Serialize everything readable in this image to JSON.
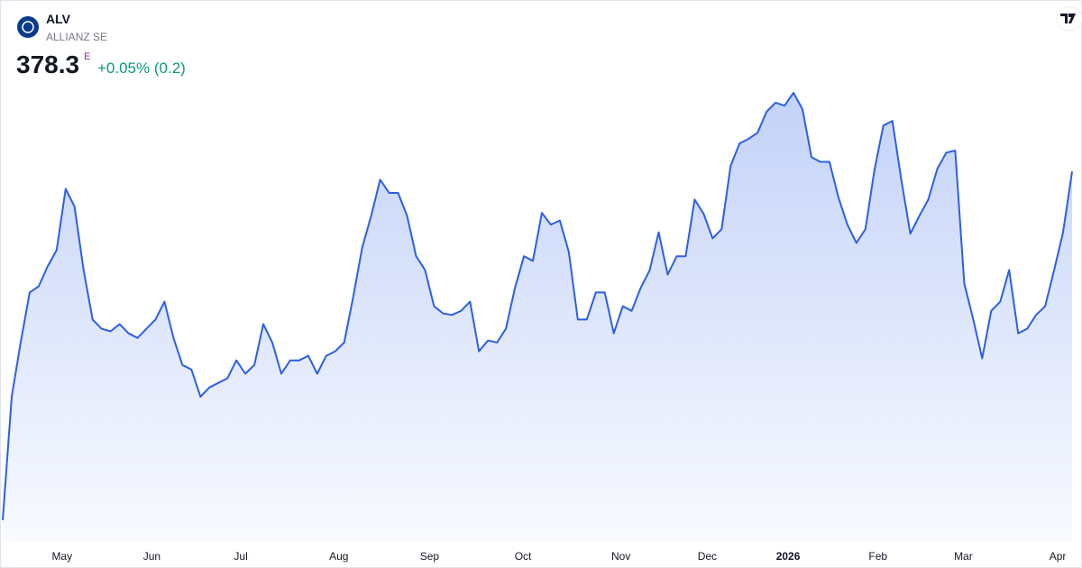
{
  "header": {
    "symbol": "ALV",
    "name": "ALLIANZ SE",
    "price": "378.3",
    "badge": "E",
    "change": "+0.05% (0.2)"
  },
  "chart_data": {
    "type": "area",
    "color": "#2c5fe8",
    "values": [
      310.0,
      334.2,
      344.8,
      354.6,
      355.8,
      359.7,
      362.9,
      374.9,
      371.4,
      359.0,
      349.3,
      347.5,
      347.0,
      348.4,
      346.6,
      345.7,
      347.5,
      349.3,
      352.8,
      345.7,
      340.4,
      339.5,
      334.2,
      336.0,
      336.9,
      337.8,
      341.3,
      338.7,
      340.4,
      348.4,
      344.8,
      338.7,
      341.3,
      341.3,
      342.2,
      338.7,
      342.2,
      343.1,
      344.8,
      353.7,
      363.4,
      369.6,
      376.7,
      374.1,
      374.1,
      369.6,
      361.7,
      359.0,
      351.9,
      350.5,
      350.2,
      351.0,
      352.8,
      343.1,
      345.2,
      344.8,
      347.5,
      355.5,
      361.7,
      360.8,
      370.2,
      367.9,
      368.7,
      362.5,
      349.3,
      349.3,
      354.6,
      354.6,
      346.6,
      351.9,
      351.0,
      355.5,
      359.0,
      366.4,
      358.1,
      361.7,
      361.7,
      372.8,
      370.0,
      365.2,
      367.0,
      379.4,
      383.8,
      384.7,
      385.9,
      390.0,
      391.8,
      391.2,
      393.7,
      390.5,
      381.1,
      380.2,
      380.2,
      373.2,
      367.9,
      364.3,
      367.0,
      378.5,
      387.3,
      388.2,
      376.7,
      366.1,
      369.6,
      372.8,
      378.8,
      382.0,
      382.4,
      356.4,
      349.3,
      341.7,
      351.0,
      352.8,
      359.0,
      346.6,
      347.5,
      350.2,
      351.9,
      359.0,
      366.4,
      378.3
    ],
    "xticks": [
      {
        "value": 6.6,
        "label": "May"
      },
      {
        "value": 16.6,
        "label": "Jun"
      },
      {
        "value": 26.5,
        "label": "Jul"
      },
      {
        "value": 37.4,
        "label": "Aug"
      },
      {
        "value": 47.5,
        "label": "Sep"
      },
      {
        "value": 57.9,
        "label": "Oct"
      },
      {
        "value": 68.8,
        "label": "Nov"
      },
      {
        "value": 78.4,
        "label": "Dec"
      },
      {
        "value": 87.4,
        "label": "2026"
      },
      {
        "value": 97.4,
        "label": "Feb"
      },
      {
        "value": 106.9,
        "label": "Mar"
      },
      {
        "value": 117.4,
        "label": "Apr"
      }
    ]
  }
}
